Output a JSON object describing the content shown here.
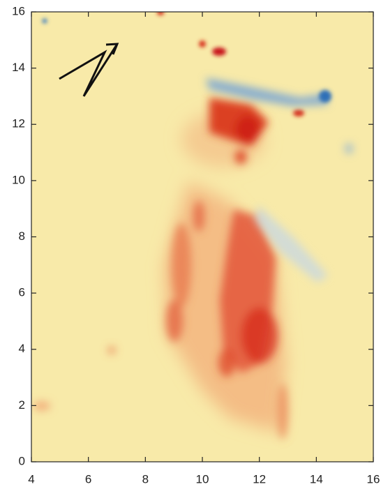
{
  "chart_data": {
    "type": "heatmap",
    "xlim": [
      4,
      16
    ],
    "ylim": [
      0,
      16
    ],
    "xticks": [
      4,
      6,
      8,
      10,
      12,
      14,
      16
    ],
    "yticks": [
      0,
      2,
      4,
      6,
      8,
      10,
      12,
      14,
      16
    ]
  }
}
